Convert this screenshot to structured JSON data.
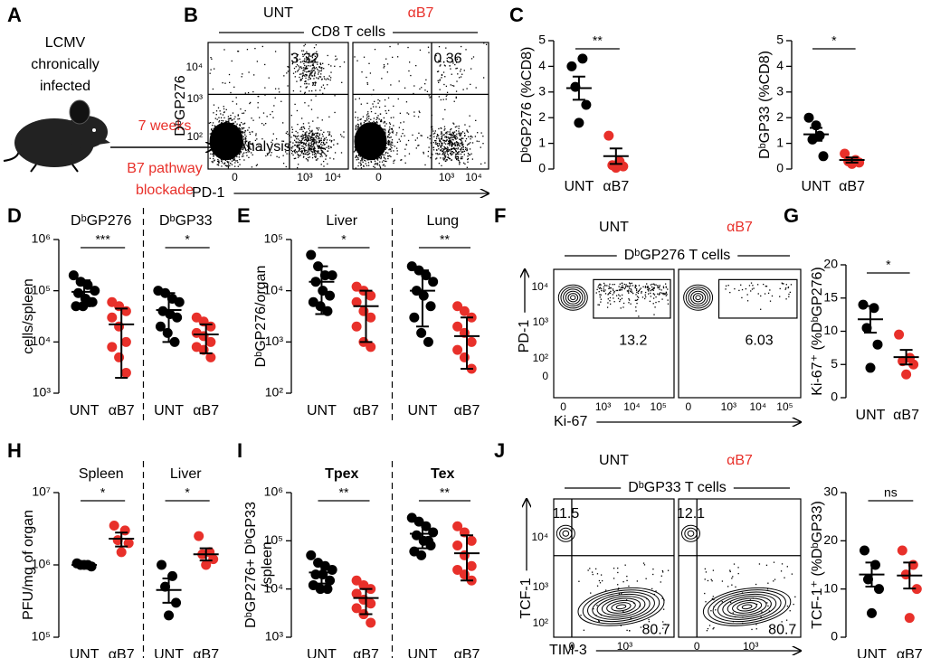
{
  "figure": {
    "letters": [
      "A",
      "B",
      "C",
      "D",
      "E",
      "F",
      "G",
      "H",
      "I",
      "J"
    ],
    "schematic": {
      "infection": [
        "LCMV",
        "chronically",
        "infected"
      ],
      "duration": "7 weeks",
      "treatment": [
        "B7 pathway",
        "blockade"
      ],
      "readout": "Analysis"
    },
    "flow": [
      {
        "headers": [
          "UNT",
          "αB7"
        ],
        "population": "CD8 T cells",
        "ylabel": "DᵇGP276",
        "xlabel": "PD-1",
        "yticks": [
          "10⁴",
          "10³",
          "10²"
        ],
        "xticks": [
          [
            "0",
            "10³",
            "10⁴"
          ],
          [
            "0",
            "10³",
            "10⁴"
          ]
        ],
        "gates": [
          [
            "3.32"
          ],
          [
            "0.36"
          ]
        ]
      },
      {
        "headers": [
          "UNT",
          "αB7"
        ],
        "population": "DᵇGP276 T cells",
        "ylabel": "PD-1",
        "xlabel": "Ki-67",
        "yticks": [
          "10⁴",
          "10³",
          "10²",
          "0"
        ],
        "xticks": [
          [
            "0",
            "10³",
            "10⁴",
            "10⁵"
          ],
          [
            "0",
            "10³",
            "10⁴",
            "10⁵"
          ]
        ],
        "gates": [
          [
            "13.2"
          ],
          [
            "6.03"
          ]
        ]
      },
      {
        "headers": [
          "UNT",
          "αB7"
        ],
        "population": "DᵇGP33 T cells",
        "ylabel": "TCF-1",
        "xlabel": "TIM-3",
        "yticks": [
          "10⁴",
          "10³",
          "10²"
        ],
        "xticks": [
          [
            "0",
            "10³"
          ],
          [
            "0",
            "10³"
          ]
        ],
        "gates": [
          [
            "11.5",
            "80.7"
          ],
          [
            "12.1",
            "80.7"
          ]
        ]
      }
    ]
  },
  "chart_data": [
    {
      "type": "strip",
      "ylabel": "DᵇGP276 (%CD8)",
      "log": false,
      "ylim": [
        0,
        5
      ],
      "yticks": [
        0,
        1,
        2,
        3,
        4,
        5
      ],
      "colors": [
        "#000000",
        "#e8302a"
      ],
      "groups": [
        {
          "categories": [
            "UNT",
            "αB7"
          ],
          "values": [
            [
              4.0,
              4.3,
              3.2,
              2.5,
              1.8
            ],
            [
              1.3,
              0.3,
              0.15,
              0.1,
              0.05
            ]
          ],
          "means": [
            3.15,
            0.5
          ],
          "lows": [
            2.7,
            0.2
          ],
          "highs": [
            3.6,
            0.8
          ],
          "sig": "**"
        }
      ]
    },
    {
      "type": "strip",
      "ylabel": "DᵇGP33 (%CD8)",
      "log": false,
      "ylim": [
        0,
        5
      ],
      "yticks": [
        0,
        1,
        2,
        3,
        4,
        5
      ],
      "colors": [
        "#000000",
        "#e8302a"
      ],
      "groups": [
        {
          "categories": [
            "UNT",
            "αB7"
          ],
          "values": [
            [
              2.0,
              1.3,
              1.15,
              0.5,
              1.7
            ],
            [
              0.6,
              0.35,
              0.3,
              0.25,
              0.2
            ]
          ],
          "means": [
            1.35,
            0.35
          ],
          "lows": [
            1.1,
            0.25
          ],
          "highs": [
            1.6,
            0.45
          ],
          "sig": "*"
        }
      ]
    },
    {
      "type": "strip",
      "ylabel": "cells/spleen",
      "log": true,
      "ylim": [
        1000,
        1000000
      ],
      "yticks": [
        {
          "value": 1000,
          "label": "10³"
        },
        {
          "value": 10000,
          "label": "10⁴"
        },
        {
          "value": 100000,
          "label": "10⁵"
        },
        {
          "value": 1000000,
          "label": "10⁶"
        }
      ],
      "colors": [
        "#000000",
        "#e8302a"
      ],
      "groups": [
        {
          "title": "DᵇGP276",
          "categories": [
            "UNT",
            "αB7"
          ],
          "values": [
            [
              200000,
              150000,
              130000,
              100000,
              90000,
              70000,
              60000,
              50000,
              50000,
              60000
            ],
            [
              60000,
              50000,
              40000,
              30000,
              20000,
              10000,
              8000,
              5000,
              2500
            ]
          ],
          "means": [
            95000,
            22000
          ],
          "lows": [
            50000,
            2000
          ],
          "highs": [
            160000,
            45000
          ],
          "sig": "***"
        },
        {
          "title": "DᵇGP33",
          "categories": [
            "UNT",
            "αB7"
          ],
          "values": [
            [
              100000,
              90000,
              70000,
              60000,
              40000,
              35000,
              30000,
              20000,
              15000,
              10000
            ],
            [
              30000,
              25000,
              20000,
              15000,
              13000,
              10000,
              8000,
              7000,
              5000
            ]
          ],
          "means": [
            42000,
            14000
          ],
          "lows": [
            10000,
            6000
          ],
          "highs": [
            90000,
            22000
          ],
          "sig": "*"
        }
      ]
    },
    {
      "type": "strip",
      "ylabel": "DᵇGP276/organ",
      "log": true,
      "ylim": [
        100,
        100000
      ],
      "yticks": [
        {
          "value": 100,
          "label": "10²"
        },
        {
          "value": 1000,
          "label": "10³"
        },
        {
          "value": 10000,
          "label": "10⁴"
        },
        {
          "value": 100000,
          "label": "10⁵"
        }
      ],
      "colors": [
        "#000000",
        "#e8302a"
      ],
      "groups": [
        {
          "title": "Liver",
          "categories": [
            "UNT",
            "αB7"
          ],
          "values": [
            [
              50000,
              30000,
              20000,
              20000,
              15000,
              10000,
              8000,
              6000,
              5000,
              4000
            ],
            [
              12000,
              10000,
              8000,
              6000,
              4000,
              3000,
              2000,
              1000,
              800
            ]
          ],
          "means": [
            15000,
            5000
          ],
          "lows": [
            3500,
            1000
          ],
          "highs": [
            30000,
            10000
          ],
          "sig": "*"
        },
        {
          "title": "Lung",
          "categories": [
            "UNT",
            "αB7"
          ],
          "values": [
            [
              30000,
              25000,
              20000,
              15000,
              10000,
              8000,
              5000,
              3000,
              1500,
              1000
            ],
            [
              5000,
              4000,
              3000,
              2000,
              1500,
              1000,
              700,
              500,
              300
            ]
          ],
          "means": [
            10000,
            1300
          ],
          "lows": [
            2000,
            300
          ],
          "highs": [
            25000,
            3000
          ],
          "sig": "**"
        }
      ]
    },
    {
      "type": "strip",
      "ylabel": "Ki-67⁺ (%DᵇGP276)",
      "log": false,
      "ylim": [
        0,
        20
      ],
      "yticks": [
        0,
        5,
        10,
        15,
        20
      ],
      "colors": [
        "#000000",
        "#e8302a"
      ],
      "groups": [
        {
          "categories": [
            "UNT",
            "αB7"
          ],
          "values": [
            [
              14,
              13.5,
              10.5,
              8,
              4.5
            ],
            [
              9.5,
              6,
              5.5,
              5,
              3.5
            ]
          ],
          "means": [
            11.8,
            6.1
          ],
          "lows": [
            9.8,
            5.0
          ],
          "highs": [
            13.8,
            7.2
          ],
          "sig": "*"
        }
      ]
    },
    {
      "type": "strip",
      "ylabel": "PFU/mg of organ",
      "log": true,
      "ylim": [
        100000,
        10000000
      ],
      "yticks": [
        {
          "value": 100000,
          "label": "10⁵"
        },
        {
          "value": 1000000,
          "label": "10⁶"
        },
        {
          "value": 10000000,
          "label": "10⁷"
        }
      ],
      "colors": [
        "#000000",
        "#e8302a"
      ],
      "groups": [
        {
          "title": "Spleen",
          "categories": [
            "UNT",
            "αB7"
          ],
          "values": [
            [
              1050000,
              1000000,
              1000000,
              950000,
              1000000
            ],
            [
              3500000,
              3000000,
              2200000,
              2000000,
              1500000
            ]
          ],
          "means": [
            1000000,
            2300000
          ],
          "lows": [
            950000,
            1800000
          ],
          "highs": [
            1050000,
            2800000
          ],
          "sig": "*"
        },
        {
          "title": "Liver",
          "categories": [
            "UNT",
            "αB7"
          ],
          "values": [
            [
              1000000,
              700000,
              500000,
              300000,
              200000
            ],
            [
              2500000,
              1500000,
              1400000,
              1200000,
              1000000
            ]
          ],
          "means": [
            450000,
            1400000
          ],
          "lows": [
            300000,
            1150000
          ],
          "highs": [
            650000,
            1700000
          ],
          "sig": "*"
        }
      ]
    },
    {
      "type": "strip",
      "ylabel": [
        "DᵇGP276+ DᵇGP33",
        "/spleen"
      ],
      "log": true,
      "ylim": [
        1000,
        1000000
      ],
      "yticks": [
        {
          "value": 1000,
          "label": "10³"
        },
        {
          "value": 10000,
          "label": "10⁴"
        },
        {
          "value": 100000,
          "label": "10⁵"
        },
        {
          "value": 1000000,
          "label": "10⁶"
        }
      ],
      "colors": [
        "#000000",
        "#e8302a"
      ],
      "groups": [
        {
          "title": "Tpex",
          "categories": [
            "UNT",
            "αB7"
          ],
          "values": [
            [
              50000,
              35000,
              30000,
              25000,
              20000,
              20000,
              15000,
              12000,
              10000,
              10000
            ],
            [
              15000,
              12000,
              10000,
              8000,
              6000,
              5000,
              4000,
              3000,
              2000
            ]
          ],
          "means": [
            22000,
            6500
          ],
          "lows": [
            13000,
            3000
          ],
          "highs": [
            32000,
            10000
          ],
          "sig": "**"
        },
        {
          "title": "Tex",
          "categories": [
            "UNT",
            "αB7"
          ],
          "values": [
            [
              300000,
              250000,
              200000,
              150000,
              130000,
              100000,
              80000,
              60000,
              50000,
              100000
            ],
            [
              200000,
              150000,
              100000,
              80000,
              50000,
              30000,
              25000,
              20000,
              15000
            ]
          ],
          "means": [
            140000,
            55000
          ],
          "lows": [
            70000,
            15000
          ],
          "highs": [
            230000,
            130000
          ],
          "sig": "**"
        }
      ]
    },
    {
      "type": "strip",
      "ylabel": "TCF-1⁺ (%DᵇGP33)",
      "log": false,
      "ylim": [
        0,
        30
      ],
      "yticks": [
        0,
        10,
        20,
        30
      ],
      "colors": [
        "#000000",
        "#e8302a"
      ],
      "groups": [
        {
          "categories": [
            "UNT",
            "αB7"
          ],
          "values": [
            [
              18,
              15,
              12,
              10,
              5
            ],
            [
              18,
              15,
              13,
              10,
              4
            ]
          ],
          "means": [
            13,
            12.8
          ],
          "lows": [
            10.5,
            10.1
          ],
          "highs": [
            15.5,
            15.5
          ],
          "sig": "ns"
        }
      ]
    }
  ]
}
